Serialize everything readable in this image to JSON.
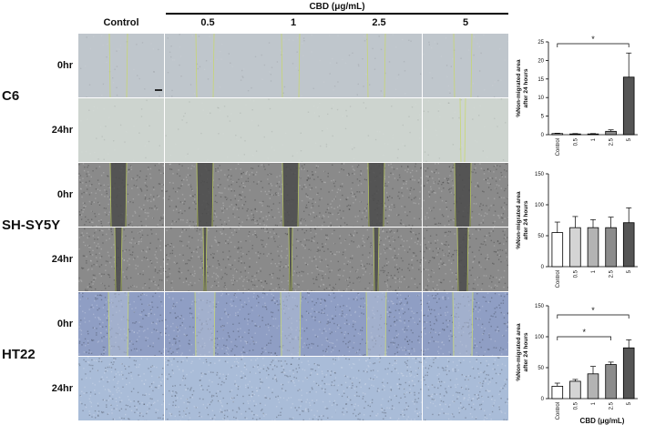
{
  "header": {
    "group_label": "CBD (μg/mL)",
    "columns": [
      "Control",
      "0.5",
      "1",
      "2.5",
      "5"
    ]
  },
  "rows": [
    {
      "cell_line": "C6",
      "times": [
        "0hr",
        "24hr"
      ],
      "tone": "c6"
    },
    {
      "cell_line": "SH-SY5Y",
      "times": [
        "0hr",
        "24hr"
      ],
      "tone": "sh"
    },
    {
      "cell_line": "HT22",
      "times": [
        "0hr",
        "24hr"
      ],
      "tone": "ht"
    }
  ],
  "tile_colors": {
    "c6": "#bfc6cc",
    "c6_24": "#cdd4cf",
    "sh": "#8a8a8a",
    "sh_gap": "#4a4a4a",
    "ht": "#8f9ec4",
    "ht_24": "#a9bcd8",
    "mark": "#c8d86a"
  },
  "chart_data": [
    {
      "type": "bar",
      "categories": [
        "Control",
        "0.5",
        "1",
        "2.5",
        "5"
      ],
      "values": [
        0.3,
        0.2,
        0.2,
        0.9,
        15.5
      ],
      "errors": [
        0.1,
        0.1,
        0.1,
        0.4,
        6.5
      ],
      "bar_fills": [
        "#ffffff",
        "#d4d4d4",
        "#b3b3b3",
        "#8c8c8c",
        "#555555"
      ],
      "ylabel": "%Non-migrated area after 24 hours",
      "xlabel": "",
      "ylim": [
        0,
        25
      ],
      "yticks": [
        0,
        5,
        10,
        15,
        20,
        25
      ],
      "significance": [
        {
          "from": "Control",
          "to": "5",
          "label": "*"
        }
      ]
    },
    {
      "type": "bar",
      "categories": [
        "Control",
        "0.5",
        "1",
        "2.5",
        "5"
      ],
      "values": [
        55,
        63,
        63,
        63,
        71
      ],
      "errors": [
        17,
        18,
        13,
        17,
        24
      ],
      "bar_fills": [
        "#ffffff",
        "#d4d4d4",
        "#b3b3b3",
        "#8c8c8c",
        "#555555"
      ],
      "ylabel": "%Non-migrated area after 24 hours",
      "xlabel": "",
      "ylim": [
        0,
        150
      ],
      "yticks": [
        0,
        50,
        100,
        150
      ],
      "significance": []
    },
    {
      "type": "bar",
      "categories": [
        "Control",
        "0.5",
        "1",
        "2.5",
        "5"
      ],
      "values": [
        20,
        28,
        40,
        55,
        82
      ],
      "errors": [
        5,
        3,
        12,
        4,
        13
      ],
      "bar_fills": [
        "#ffffff",
        "#d4d4d4",
        "#b3b3b3",
        "#8c8c8c",
        "#555555"
      ],
      "ylabel": "%Non-migrated area after 24 hours",
      "xlabel": "CBD (μg/mL)",
      "ylim": [
        0,
        150
      ],
      "yticks": [
        0,
        50,
        100,
        150
      ],
      "significance": [
        {
          "from": "Control",
          "to": "2.5",
          "label": "*"
        },
        {
          "from": "Control",
          "to": "5",
          "label": "*"
        }
      ]
    }
  ]
}
